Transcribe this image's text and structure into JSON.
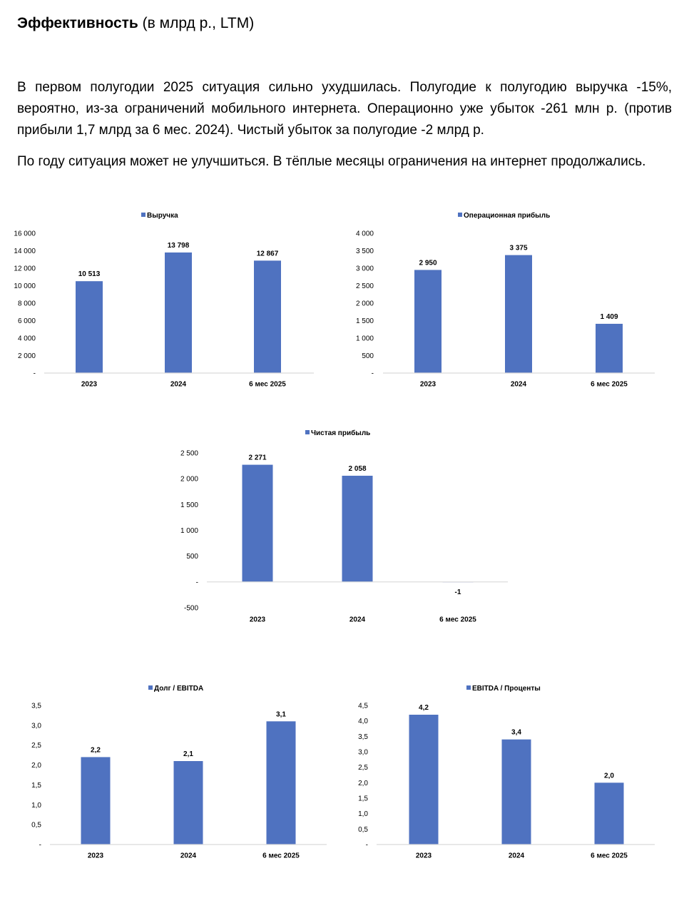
{
  "header": {
    "title_bold": "Эффективность",
    "title_rest": " (в млрд р., LTM)"
  },
  "paragraphs": [
    "В первом полугодии 2025 ситуация сильно ухудшилась. Полугодие к полугодию выручка -15%, вероятно, из-за ограничений мобильного интернета. Операционно уже убыток -261 млн р. (против прибыли 1,7 млрд за 6 мес. 2024). Чистый убыток за полугодие -2 млрд р.",
    "По году ситуация может не улучшиться. В тёплые месяцы ограничения на интернет продолжались."
  ],
  "colors": {
    "bar": "#4f72c0",
    "axis": "#d9d9d9"
  },
  "chart_data": [
    {
      "type": "bar",
      "legend": "Выручка",
      "legend_position": "top",
      "categories": [
        "2023",
        "2024",
        "6 мес 2025"
      ],
      "values": [
        10513,
        13798,
        12867
      ],
      "value_labels": [
        "10 513",
        "13 798",
        "12 867"
      ],
      "ylim": [
        0,
        16000
      ],
      "yticks": [
        {
          "v": 0,
          "label": "-"
        },
        {
          "v": 2000,
          "label": "2 000"
        },
        {
          "v": 4000,
          "label": "4 000"
        },
        {
          "v": 6000,
          "label": "6 000"
        },
        {
          "v": 8000,
          "label": "8 000"
        },
        {
          "v": 10000,
          "label": "10 000"
        },
        {
          "v": 12000,
          "label": "12 000"
        },
        {
          "v": 14000,
          "label": "14 000"
        },
        {
          "v": 16000,
          "label": "16 000"
        }
      ],
      "grid": false
    },
    {
      "type": "bar",
      "legend": "Операционная прибыль",
      "legend_position": "top",
      "categories": [
        "2023",
        "2024",
        "6 мес 2025"
      ],
      "values": [
        2950,
        3375,
        1409
      ],
      "value_labels": [
        "2 950",
        "3 375",
        "1 409"
      ],
      "ylim": [
        0,
        4000
      ],
      "yticks": [
        {
          "v": 0,
          "label": "-"
        },
        {
          "v": 500,
          "label": "500"
        },
        {
          "v": 1000,
          "label": "1 000"
        },
        {
          "v": 1500,
          "label": "1 500"
        },
        {
          "v": 2000,
          "label": "2 000"
        },
        {
          "v": 2500,
          "label": "2 500"
        },
        {
          "v": 3000,
          "label": "3 000"
        },
        {
          "v": 3500,
          "label": "3 500"
        },
        {
          "v": 4000,
          "label": "4 000"
        }
      ],
      "grid": false
    },
    {
      "type": "bar",
      "legend": "Чистая прибыль",
      "legend_position": "top",
      "categories": [
        "2023",
        "2024",
        "6 мес 2025"
      ],
      "values": [
        2271,
        2058,
        -1
      ],
      "value_labels": [
        "2 271",
        "2 058",
        "-1"
      ],
      "ylim": [
        -500,
        2500
      ],
      "yticks": [
        {
          "v": -500,
          "label": "-500"
        },
        {
          "v": 0,
          "label": "-"
        },
        {
          "v": 500,
          "label": "500"
        },
        {
          "v": 1000,
          "label": "1 000"
        },
        {
          "v": 1500,
          "label": "1 500"
        },
        {
          "v": 2000,
          "label": "2 000"
        },
        {
          "v": 2500,
          "label": "2 500"
        }
      ],
      "grid": false
    },
    {
      "type": "bar",
      "legend": "Долг / EBITDA",
      "legend_position": "top",
      "categories": [
        "2023",
        "2024",
        "6 мес 2025"
      ],
      "values": [
        2.2,
        2.1,
        3.1
      ],
      "value_labels": [
        "2,2",
        "2,1",
        "3,1"
      ],
      "ylim": [
        0,
        3.5
      ],
      "yticks": [
        {
          "v": 0,
          "label": "-"
        },
        {
          "v": 0.5,
          "label": "0,5"
        },
        {
          "v": 1.0,
          "label": "1,0"
        },
        {
          "v": 1.5,
          "label": "1,5"
        },
        {
          "v": 2.0,
          "label": "2,0"
        },
        {
          "v": 2.5,
          "label": "2,5"
        },
        {
          "v": 3.0,
          "label": "3,0"
        },
        {
          "v": 3.5,
          "label": "3,5"
        }
      ],
      "grid": false
    },
    {
      "type": "bar",
      "legend": "EBITDA / Проценты",
      "legend_position": "top",
      "categories": [
        "2023",
        "2024",
        "6 мес 2025"
      ],
      "values": [
        4.2,
        3.4,
        2.0
      ],
      "value_labels": [
        "4,2",
        "3,4",
        "2,0"
      ],
      "ylim": [
        0,
        4.5
      ],
      "yticks": [
        {
          "v": 0,
          "label": "-"
        },
        {
          "v": 0.5,
          "label": "0,5"
        },
        {
          "v": 1.0,
          "label": "1,0"
        },
        {
          "v": 1.5,
          "label": "1,5"
        },
        {
          "v": 2.0,
          "label": "2,0"
        },
        {
          "v": 2.5,
          "label": "2,5"
        },
        {
          "v": 3.0,
          "label": "3,0"
        },
        {
          "v": 3.5,
          "label": "3,5"
        },
        {
          "v": 4.0,
          "label": "4,0"
        },
        {
          "v": 4.5,
          "label": "4,5"
        }
      ],
      "grid": false
    }
  ]
}
